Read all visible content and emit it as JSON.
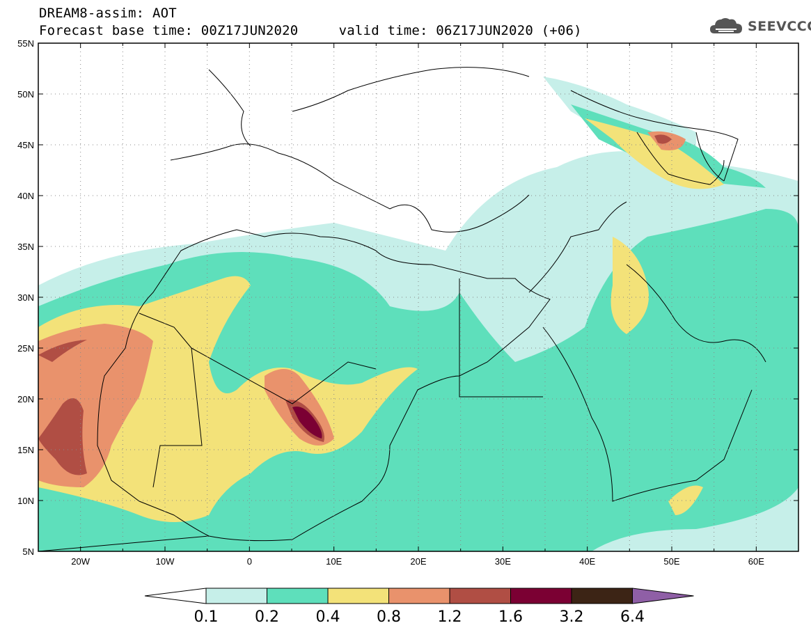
{
  "header": {
    "title_line1": "DREAM8-assim: AOT",
    "title_line2": "Forecast base time: 00Z17JUN2020     valid time: 06Z17JUN2020 (+06)",
    "logo_text": "SEEVCCC",
    "logo_icon": "cloud-icon"
  },
  "map": {
    "variable": "AOT",
    "lon_range": [
      -25,
      65
    ],
    "lat_range": [
      5,
      55
    ],
    "lat_labels": [
      "55N",
      "50N",
      "45N",
      "40N",
      "35N",
      "30N",
      "25N",
      "20N",
      "15N",
      "10N",
      "5N"
    ],
    "lon_labels": [
      "20W",
      "10W",
      "0",
      "10E",
      "20E",
      "30E",
      "40E",
      "50E",
      "60E"
    ],
    "lat_values": [
      55,
      50,
      45,
      40,
      35,
      30,
      25,
      20,
      15,
      10,
      5
    ],
    "lon_values": [
      -20,
      -10,
      0,
      10,
      20,
      30,
      40,
      50,
      60
    ],
    "grid": "dotted"
  },
  "colorbar": {
    "levels": [
      "0.1",
      "0.2",
      "0.4",
      "0.8",
      "1.2",
      "1.6",
      "3.2",
      "6.4"
    ],
    "colors": [
      "#ffffff",
      "#c6efe9",
      "#5edfbb",
      "#f3e279",
      "#e9926c",
      "#b04e44",
      "#7b0033",
      "#3c2415",
      "#8f5fa6"
    ]
  }
}
